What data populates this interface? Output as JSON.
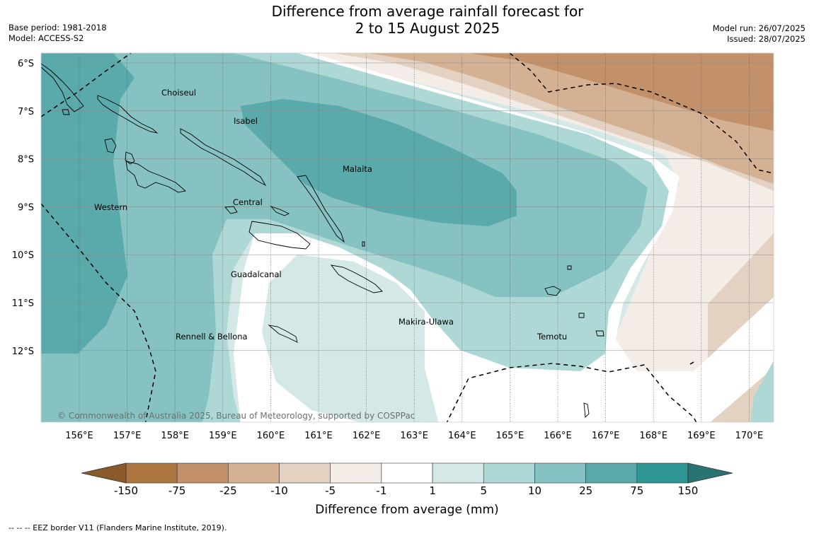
{
  "title": {
    "line1": "Difference from average rainfall forecast for",
    "line2": "2 to 15 August 2025"
  },
  "meta_left": {
    "base_period": "Base period: 1981-2018",
    "model": "Model: ACCESS-S2"
  },
  "meta_right": {
    "model_run": "Model run: 26/07/2025",
    "issued": "Issued: 28/07/2025"
  },
  "map": {
    "lat_labels": [
      "6°S",
      "7°S",
      "8°S",
      "9°S",
      "10°S",
      "11°S",
      "12°S"
    ],
    "lon_labels": [
      "156°E",
      "157°E",
      "158°E",
      "159°E",
      "160°E",
      "161°E",
      "162°E",
      "163°E",
      "164°E",
      "165°E",
      "166°E",
      "167°E",
      "168°E",
      "169°E",
      "170°E"
    ],
    "places": [
      {
        "name": "Choiseul"
      },
      {
        "name": "Isabel"
      },
      {
        "name": "Malaita"
      },
      {
        "name": "Western"
      },
      {
        "name": "Central"
      },
      {
        "name": "Guadalcanal"
      },
      {
        "name": "Makira-Ulawa"
      },
      {
        "name": "Rennell & Bellona"
      },
      {
        "name": "Temotu"
      }
    ],
    "copyright": "© Commonwealth of Australia 2025, Bureau of Meteorology, supported by COSPPac"
  },
  "colorbar": {
    "labels": [
      "-150",
      "-75",
      "-25",
      "-10",
      "-5",
      "-1",
      "1",
      "5",
      "10",
      "25",
      "75",
      "150"
    ],
    "title": "Difference from average (mm)",
    "colors": {
      "below_-150": "#8a5a2b",
      "-150_-75": "#ad7641",
      "-75_-25": "#c2916a",
      "-25_-10": "#d5b193",
      "-10_-5": "#e3d2c2",
      "-5_-1": "#f4ece6",
      "-1_1": "#ffffff",
      "1_5": "#d4e8e7",
      "5_10": "#aed8d6",
      "10_25": "#86c2c1",
      "25_75": "#5aaaab",
      "75_150": "#2e9494",
      "above_150": "#2a7373"
    }
  },
  "footnote": "--  --  -- EEZ border V11 (Flanders Marine Institute, 2019)."
}
